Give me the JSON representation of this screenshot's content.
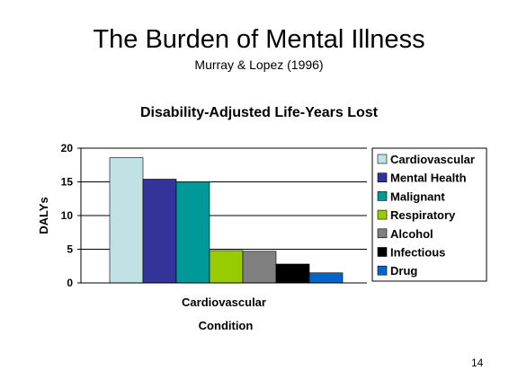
{
  "slide": {
    "title": "The Burden of Mental Illness",
    "subtitle": "Murray & Lopez (1996)",
    "page_number": "14"
  },
  "chart_data": {
    "type": "bar",
    "title": "Disability-Adjusted Life-Years Lost",
    "xlabel": "Condition",
    "ylabel": "DALYs",
    "categories": [
      "Cardiovascular"
    ],
    "series": [
      {
        "name": "Cardiovascular",
        "values": [
          18.6
        ],
        "color": "#c0e2e4"
      },
      {
        "name": "Mental Health",
        "values": [
          15.4
        ],
        "color": "#333399"
      },
      {
        "name": "Malignant",
        "values": [
          15.0
        ],
        "color": "#009999"
      },
      {
        "name": "Respiratory",
        "values": [
          4.8
        ],
        "color": "#99cc00"
      },
      {
        "name": "Alcohol",
        "values": [
          4.7
        ],
        "color": "#808080"
      },
      {
        "name": "Infectious",
        "values": [
          2.8
        ],
        "color": "#000000"
      },
      {
        "name": "Drug",
        "values": [
          1.5
        ],
        "color": "#0066cc"
      }
    ],
    "ylim": [
      0,
      20
    ],
    "yticks": [
      0,
      5,
      10,
      15,
      20
    ],
    "grid": true,
    "legend_position": "right"
  }
}
